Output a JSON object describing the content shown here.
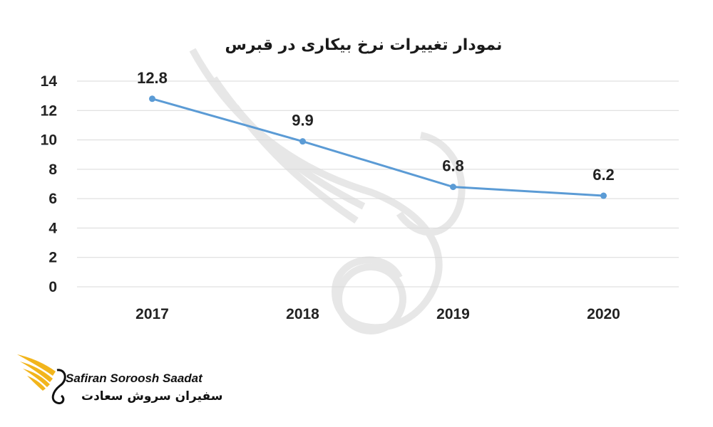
{
  "colors": {
    "line": "#5b9bd5",
    "grid": "#d9d9d9",
    "text": "#222222",
    "brand_gold": "#f2b51c"
  },
  "chart_data": {
    "type": "line",
    "title": "نمودار تغییرات نرخ بیکاری در قبرس",
    "categories": [
      "2017",
      "2018",
      "2019",
      "2020"
    ],
    "series": [
      {
        "values": [
          12.8,
          9.9,
          6.8,
          6.2
        ],
        "data_labels": [
          "12.8",
          "9.9",
          "6.8",
          "6.2"
        ]
      }
    ],
    "yticks": [
      "0",
      "2",
      "4",
      "6",
      "8",
      "10",
      "12",
      "14"
    ],
    "ylim": [
      0,
      14
    ],
    "grid": true,
    "legend": false
  },
  "logo": {
    "name_en": "Safiran Soroosh Saadat",
    "name_fa": "سفیران سروش سعادت",
    "icon": "swan-wing-logo-icon"
  }
}
